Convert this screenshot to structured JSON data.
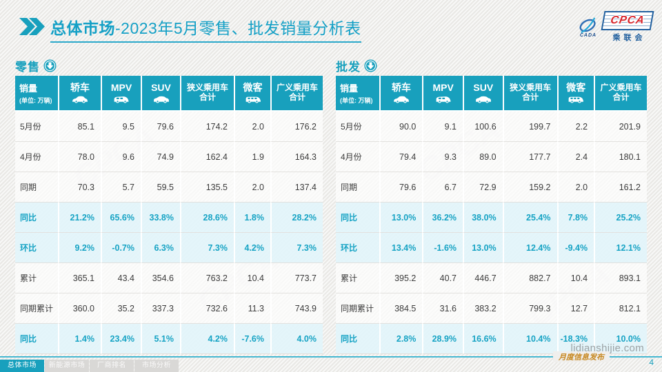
{
  "title": {
    "bold": "总体市场",
    "regular": "-2023年5月零售、批发销量分析表"
  },
  "logo": {
    "cpca": "CPCA",
    "org": "乘联会",
    "cada": "CADA"
  },
  "table_columns": [
    {
      "title": "销量",
      "subtitle": "(单位: 万辆)",
      "icon": null
    },
    {
      "title": "轿车",
      "icon": "sedan-icon"
    },
    {
      "title": "MPV",
      "icon": "mpv-icon"
    },
    {
      "title": "SUV",
      "icon": "suv-icon"
    },
    {
      "title": "狭义乘用车\n合计",
      "icon": null
    },
    {
      "title": "微客",
      "icon": "minibus-icon"
    },
    {
      "title": "广义乘用车\n合计",
      "icon": null
    }
  ],
  "retail": {
    "heading": "零售",
    "rows": [
      {
        "label": "5月份",
        "highlight": false,
        "values": [
          "85.1",
          "9.5",
          "79.6",
          "174.2",
          "2.0",
          "176.2"
        ]
      },
      {
        "label": "4月份",
        "highlight": false,
        "values": [
          "78.0",
          "9.6",
          "74.9",
          "162.4",
          "1.9",
          "164.3"
        ]
      },
      {
        "label": "同期",
        "highlight": false,
        "values": [
          "70.3",
          "5.7",
          "59.5",
          "135.5",
          "2.0",
          "137.4"
        ]
      },
      {
        "label": "同比",
        "highlight": true,
        "values": [
          "21.2%",
          "65.6%",
          "33.8%",
          "28.6%",
          "1.8%",
          "28.2%"
        ]
      },
      {
        "label": "环比",
        "highlight": true,
        "values": [
          "9.2%",
          "-0.7%",
          "6.3%",
          "7.3%",
          "4.2%",
          "7.3%"
        ]
      },
      {
        "label": "累计",
        "highlight": false,
        "values": [
          "365.1",
          "43.4",
          "354.6",
          "763.2",
          "10.4",
          "773.7"
        ]
      },
      {
        "label": "同期累计",
        "highlight": false,
        "values": [
          "360.0",
          "35.2",
          "337.3",
          "732.6",
          "11.3",
          "743.9"
        ]
      },
      {
        "label": "同比",
        "highlight": true,
        "values": [
          "1.4%",
          "23.4%",
          "5.1%",
          "4.2%",
          "-7.6%",
          "4.0%"
        ]
      }
    ]
  },
  "wholesale": {
    "heading": "批发",
    "rows": [
      {
        "label": "5月份",
        "highlight": false,
        "values": [
          "90.0",
          "9.1",
          "100.6",
          "199.7",
          "2.2",
          "201.9"
        ]
      },
      {
        "label": "4月份",
        "highlight": false,
        "values": [
          "79.4",
          "9.3",
          "89.0",
          "177.7",
          "2.4",
          "180.1"
        ]
      },
      {
        "label": "同期",
        "highlight": false,
        "values": [
          "79.6",
          "6.7",
          "72.9",
          "159.2",
          "2.0",
          "161.2"
        ]
      },
      {
        "label": "同比",
        "highlight": true,
        "values": [
          "13.0%",
          "36.2%",
          "38.0%",
          "25.4%",
          "7.8%",
          "25.2%"
        ]
      },
      {
        "label": "环比",
        "highlight": true,
        "values": [
          "13.4%",
          "-1.6%",
          "13.0%",
          "12.4%",
          "-9.4%",
          "12.1%"
        ]
      },
      {
        "label": "累计",
        "highlight": false,
        "values": [
          "395.2",
          "40.7",
          "446.7",
          "882.7",
          "10.4",
          "893.1"
        ]
      },
      {
        "label": "同期累计",
        "highlight": false,
        "values": [
          "384.5",
          "31.6",
          "383.2",
          "799.3",
          "12.7",
          "812.1"
        ]
      },
      {
        "label": "同比",
        "highlight": true,
        "values": [
          "2.8%",
          "28.9%",
          "16.6%",
          "10.4%",
          "-18.3%",
          "10.0%"
        ]
      }
    ]
  },
  "footer": {
    "tabs": [
      {
        "label": "总体市场",
        "active": true
      },
      {
        "label": "新能源市场",
        "active": false
      },
      {
        "label": "厂商排名",
        "active": false
      },
      {
        "label": "市场分析",
        "active": false
      }
    ],
    "site": "lidianshijie.com",
    "publisher": "月度信息发布",
    "page_number": "4"
  },
  "colors": {
    "accent": "#18a0bd",
    "highlight_bg": "#e4f4fa",
    "title": "#14a0c6"
  }
}
